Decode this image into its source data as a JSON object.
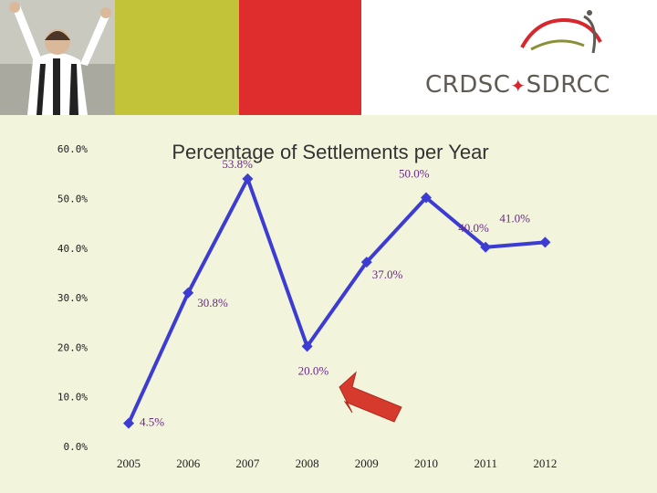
{
  "header": {
    "logo_text_left": "CRDSC",
    "logo_text_right": "SDRCC",
    "logo_separator": "✦",
    "colors": {
      "olive": "#c3c33a",
      "red": "#df2d2d",
      "logo_arc": "#d8262c",
      "logo_text": "#5f5a52",
      "background": "#f2f4dc"
    },
    "photo_icon": "referee-photo"
  },
  "chart_data": {
    "type": "line",
    "title": "Percentage of Settlements per Year",
    "categories": [
      "2005",
      "2006",
      "2007",
      "2008",
      "2009",
      "2010",
      "2011",
      "2012"
    ],
    "series": [
      {
        "values": [
          4.5,
          30.8,
          53.8,
          20.0,
          37.0,
          50.0,
          40.0,
          41.0
        ],
        "labels": [
          "4.5%",
          "30.8%",
          "53.8%",
          "20.0%",
          "37.0%",
          "50.0%",
          "40.0%",
          "41.0%"
        ],
        "color": "#3c3cd2"
      }
    ],
    "yticks": [
      "0.0%",
      "10.0%",
      "20.0%",
      "30.0%",
      "40.0%",
      "50.0%",
      "60.0%"
    ],
    "ylim": [
      0,
      60
    ],
    "grid": false,
    "label_color": "#6a2a8a",
    "arrow_color": "#d63a2c"
  }
}
